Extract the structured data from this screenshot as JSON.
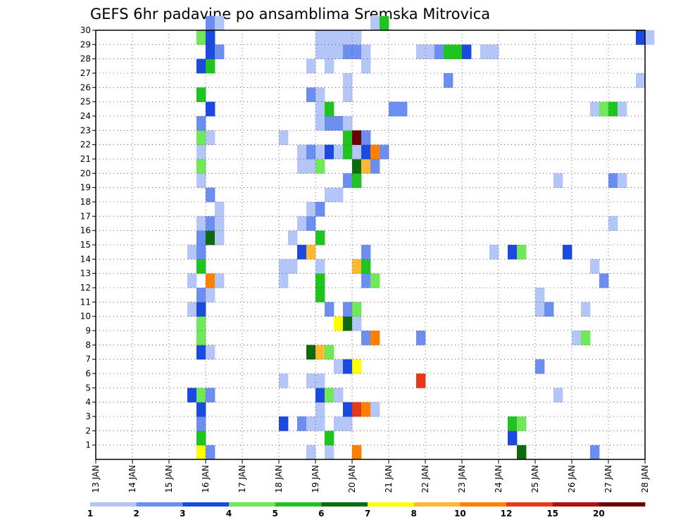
{
  "chart_data": {
    "type": "heatmap",
    "title": "GEFS 6hr padavine po ansamblima Sremska Mitrovica",
    "x_axis": {
      "type": "time",
      "step": "6hr",
      "range": [
        "13 JAN",
        "28 JAN"
      ],
      "tick_labels": [
        "13 JAN",
        "14 JAN",
        "15 JAN",
        "16 JAN",
        "17 JAN",
        "18 JAN",
        "19 JAN",
        "20 JAN",
        "21 JAN",
        "22 JAN",
        "23 JAN",
        "24 JAN",
        "25 JAN",
        "26 JAN",
        "27 JAN",
        "28 JAN"
      ]
    },
    "y_axis": {
      "type": "ensemble member",
      "range": [
        0,
        30
      ],
      "tick_labels": [
        "1",
        "2",
        "3",
        "4",
        "5",
        "6",
        "7",
        "8",
        "9",
        "10",
        "11",
        "12",
        "13",
        "14",
        "15",
        "16",
        "17",
        "18",
        "19",
        "20",
        "21",
        "22",
        "23",
        "24",
        "25",
        "26",
        "27",
        "28",
        "29",
        "30"
      ]
    },
    "grid": "dotted",
    "legend": {
      "position": "bottom",
      "levels": [
        "1",
        "2",
        "3",
        "4",
        "5",
        "6",
        "7",
        "8",
        "10",
        "12",
        "15",
        "20"
      ],
      "colors": [
        "#b3c6f7",
        "#6b8ef0",
        "#1a4ae0",
        "#6fe85a",
        "#1fc41f",
        "#0d6b0d",
        "#ffff00",
        "#ffb833",
        "#ff7f00",
        "#e83818",
        "#b01010",
        "#6b0000"
      ]
    },
    "cells": [
      {
        "t": "15 JAN 18z",
        "member": 0,
        "level": 7
      },
      {
        "t": "16 JAN 00z",
        "member": 0,
        "level": 2
      },
      {
        "t": "18 JAN 18z",
        "member": 0,
        "level": 1
      },
      {
        "t": "19 JAN 06z",
        "member": 0,
        "level": 1
      },
      {
        "t": "20 JAN 00z",
        "member": 0,
        "level": 9
      },
      {
        "t": "24 JAN 12z",
        "member": 0,
        "level": 6
      },
      {
        "t": "26 JAN 12z",
        "member": 0,
        "level": 2
      },
      {
        "t": "15 JAN 18z",
        "member": 1,
        "level": 5
      },
      {
        "t": "19 JAN 06z",
        "member": 1,
        "level": 5
      },
      {
        "t": "24 JAN 06z",
        "member": 1,
        "level": 3
      },
      {
        "t": "15 JAN 18z",
        "member": 2,
        "level": 2
      },
      {
        "t": "18 JAN 00z",
        "member": 2,
        "level": 3
      },
      {
        "t": "18 JAN 12z",
        "member": 2,
        "level": 2
      },
      {
        "t": "18 JAN 18z",
        "member": 2,
        "level": 1
      },
      {
        "t": "19 JAN 00z",
        "member": 2,
        "level": 1
      },
      {
        "t": "19 JAN 12z",
        "member": 2,
        "level": 1
      },
      {
        "t": "19 JAN 18z",
        "member": 2,
        "level": 1
      },
      {
        "t": "24 JAN 06z",
        "member": 2,
        "level": 5
      },
      {
        "t": "24 JAN 12z",
        "member": 2,
        "level": 4
      },
      {
        "t": "15 JAN 18z",
        "member": 3,
        "level": 3
      },
      {
        "t": "19 JAN 00z",
        "member": 3,
        "level": 1
      },
      {
        "t": "19 JAN 18z",
        "member": 3,
        "level": 3
      },
      {
        "t": "20 JAN 00z",
        "member": 3,
        "level": 10
      },
      {
        "t": "20 JAN 06z",
        "member": 3,
        "level": 9
      },
      {
        "t": "20 JAN 12z",
        "member": 3,
        "level": 1
      },
      {
        "t": "15 JAN 12z",
        "member": 4,
        "level": 3
      },
      {
        "t": "15 JAN 18z",
        "member": 4,
        "level": 4
      },
      {
        "t": "16 JAN 00z",
        "member": 4,
        "level": 2
      },
      {
        "t": "19 JAN 00z",
        "member": 4,
        "level": 3
      },
      {
        "t": "19 JAN 06z",
        "member": 4,
        "level": 4
      },
      {
        "t": "19 JAN 12z",
        "member": 4,
        "level": 1
      },
      {
        "t": "25 JAN 12z",
        "member": 4,
        "level": 1
      },
      {
        "t": "18 JAN 00z",
        "member": 5,
        "level": 1
      },
      {
        "t": "18 JAN 18z",
        "member": 5,
        "level": 1
      },
      {
        "t": "19 JAN 00z",
        "member": 5,
        "level": 1
      },
      {
        "t": "21 JAN 18z",
        "member": 5,
        "level": 10
      },
      {
        "t": "19 JAN 12z",
        "member": 6,
        "level": 1
      },
      {
        "t": "19 JAN 18z",
        "member": 6,
        "level": 3
      },
      {
        "t": "20 JAN 00z",
        "member": 6,
        "level": 7
      },
      {
        "t": "25 JAN 00z",
        "member": 6,
        "level": 2
      },
      {
        "t": "15 JAN 18z",
        "member": 7,
        "level": 3
      },
      {
        "t": "16 JAN 00z",
        "member": 7,
        "level": 1
      },
      {
        "t": "18 JAN 18z",
        "member": 7,
        "level": 6
      },
      {
        "t": "19 JAN 00z",
        "member": 7,
        "level": 8
      },
      {
        "t": "19 JAN 06z",
        "member": 7,
        "level": 4
      },
      {
        "t": "15 JAN 18z",
        "member": 8,
        "level": 4
      },
      {
        "t": "20 JAN 06z",
        "member": 8,
        "level": 2
      },
      {
        "t": "20 JAN 12z",
        "member": 8,
        "level": 9
      },
      {
        "t": "21 JAN 18z",
        "member": 8,
        "level": 2
      },
      {
        "t": "26 JAN 00z",
        "member": 8,
        "level": 1
      },
      {
        "t": "26 JAN 06z",
        "member": 8,
        "level": 4
      },
      {
        "t": "15 JAN 18z",
        "member": 9,
        "level": 4
      },
      {
        "t": "19 JAN 12z",
        "member": 9,
        "level": 7
      },
      {
        "t": "19 JAN 18z",
        "member": 9,
        "level": 6
      },
      {
        "t": "20 JAN 00z",
        "member": 9,
        "level": 1
      },
      {
        "t": "15 JAN 12z",
        "member": 10,
        "level": 1
      },
      {
        "t": "15 JAN 18z",
        "member": 10,
        "level": 3
      },
      {
        "t": "19 JAN 06z",
        "member": 10,
        "level": 2
      },
      {
        "t": "19 JAN 18z",
        "member": 10,
        "level": 2
      },
      {
        "t": "20 JAN 00z",
        "member": 10,
        "level": 4
      },
      {
        "t": "25 JAN 00z",
        "member": 10,
        "level": 1
      },
      {
        "t": "25 JAN 06z",
        "member": 10,
        "level": 2
      },
      {
        "t": "26 JAN 06z",
        "member": 10,
        "level": 1
      },
      {
        "t": "15 JAN 18z",
        "member": 11,
        "level": 2
      },
      {
        "t": "16 JAN 00z",
        "member": 11,
        "level": 1
      },
      {
        "t": "19 JAN 00z",
        "member": 11,
        "level": 5
      },
      {
        "t": "25 JAN 00z",
        "member": 11,
        "level": 1
      },
      {
        "t": "15 JAN 12z",
        "member": 12,
        "level": 1
      },
      {
        "t": "16 JAN 00z",
        "member": 12,
        "level": 9
      },
      {
        "t": "16 JAN 06z",
        "member": 12,
        "level": 1
      },
      {
        "t": "18 JAN 00z",
        "member": 12,
        "level": 1
      },
      {
        "t": "19 JAN 00z",
        "member": 12,
        "level": 5
      },
      {
        "t": "20 JAN 06z",
        "member": 12,
        "level": 2
      },
      {
        "t": "20 JAN 12z",
        "member": 12,
        "level": 4
      },
      {
        "t": "26 JAN 18z",
        "member": 12,
        "level": 2
      },
      {
        "t": "15 JAN 18z",
        "member": 13,
        "level": 5
      },
      {
        "t": "18 JAN 00z",
        "member": 13,
        "level": 1
      },
      {
        "t": "18 JAN 06z",
        "member": 13,
        "level": 1
      },
      {
        "t": "19 JAN 00z",
        "member": 13,
        "level": 1
      },
      {
        "t": "20 JAN 00z",
        "member": 13,
        "level": 8
      },
      {
        "t": "20 JAN 06z",
        "member": 13,
        "level": 5
      },
      {
        "t": "26 JAN 12z",
        "member": 13,
        "level": 1
      },
      {
        "t": "15 JAN 12z",
        "member": 14,
        "level": 1
      },
      {
        "t": "15 JAN 18z",
        "member": 14,
        "level": 2
      },
      {
        "t": "18 JAN 12z",
        "member": 14,
        "level": 3
      },
      {
        "t": "18 JAN 18z",
        "member": 14,
        "level": 8
      },
      {
        "t": "20 JAN 06z",
        "member": 14,
        "level": 2
      },
      {
        "t": "23 JAN 18z",
        "member": 14,
        "level": 1
      },
      {
        "t": "24 JAN 06z",
        "member": 14,
        "level": 3
      },
      {
        "t": "24 JAN 12z",
        "member": 14,
        "level": 4
      },
      {
        "t": "25 JAN 18z",
        "member": 14,
        "level": 3
      },
      {
        "t": "15 JAN 18z",
        "member": 15,
        "level": 2
      },
      {
        "t": "16 JAN 00z",
        "member": 15,
        "level": 6
      },
      {
        "t": "16 JAN 06z",
        "member": 15,
        "level": 1
      },
      {
        "t": "18 JAN 06z",
        "member": 15,
        "level": 1
      },
      {
        "t": "19 JAN 00z",
        "member": 15,
        "level": 5
      },
      {
        "t": "15 JAN 18z",
        "member": 16,
        "level": 1
      },
      {
        "t": "16 JAN 00z",
        "member": 16,
        "level": 2
      },
      {
        "t": "16 JAN 06z",
        "member": 16,
        "level": 1
      },
      {
        "t": "18 JAN 12z",
        "member": 16,
        "level": 1
      },
      {
        "t": "18 JAN 18z",
        "member": 16,
        "level": 2
      },
      {
        "t": "27 JAN 00z",
        "member": 16,
        "level": 1
      },
      {
        "t": "16 JAN 06z",
        "member": 17,
        "level": 1
      },
      {
        "t": "18 JAN 18z",
        "member": 17,
        "level": 1
      },
      {
        "t": "19 JAN 00z",
        "member": 17,
        "level": 2
      },
      {
        "t": "16 JAN 00z",
        "member": 18,
        "level": 2
      },
      {
        "t": "19 JAN 06z",
        "member": 18,
        "level": 1
      },
      {
        "t": "19 JAN 12z",
        "member": 18,
        "level": 1
      },
      {
        "t": "15 JAN 18z",
        "member": 19,
        "level": 1
      },
      {
        "t": "19 JAN 18z",
        "member": 19,
        "level": 2
      },
      {
        "t": "20 JAN 00z",
        "member": 19,
        "level": 5
      },
      {
        "t": "25 JAN 12z",
        "member": 19,
        "level": 1
      },
      {
        "t": "27 JAN 00z",
        "member": 19,
        "level": 2
      },
      {
        "t": "27 JAN 06z",
        "member": 19,
        "level": 1
      },
      {
        "t": "15 JAN 18z",
        "member": 20,
        "level": 4
      },
      {
        "t": "18 JAN 12z",
        "member": 20,
        "level": 1
      },
      {
        "t": "18 JAN 18z",
        "member": 20,
        "level": 1
      },
      {
        "t": "19 JAN 00z",
        "member": 20,
        "level": 4
      },
      {
        "t": "20 JAN 00z",
        "member": 20,
        "level": 6
      },
      {
        "t": "20 JAN 06z",
        "member": 20,
        "level": 8
      },
      {
        "t": "20 JAN 12z",
        "member": 20,
        "level": 2
      },
      {
        "t": "15 JAN 18z",
        "member": 21,
        "level": 1
      },
      {
        "t": "18 JAN 12z",
        "member": 21,
        "level": 1
      },
      {
        "t": "18 JAN 18z",
        "member": 21,
        "level": 2
      },
      {
        "t": "19 JAN 00z",
        "member": 21,
        "level": 1
      },
      {
        "t": "19 JAN 06z",
        "member": 21,
        "level": 3
      },
      {
        "t": "19 JAN 12z",
        "member": 21,
        "level": 1
      },
      {
        "t": "19 JAN 18z",
        "member": 21,
        "level": 5
      },
      {
        "t": "20 JAN 00z",
        "member": 21,
        "level": 1
      },
      {
        "t": "20 JAN 06z",
        "member": 21,
        "level": 3
      },
      {
        "t": "20 JAN 12z",
        "member": 21,
        "level": 9
      },
      {
        "t": "20 JAN 18z",
        "member": 21,
        "level": 2
      },
      {
        "t": "15 JAN 18z",
        "member": 22,
        "level": 4
      },
      {
        "t": "16 JAN 00z",
        "member": 22,
        "level": 1
      },
      {
        "t": "18 JAN 00z",
        "member": 22,
        "level": 1
      },
      {
        "t": "19 JAN 18z",
        "member": 22,
        "level": 5
      },
      {
        "t": "20 JAN 00z",
        "member": 22,
        "level": 12
      },
      {
        "t": "20 JAN 06z",
        "member": 22,
        "level": 2
      },
      {
        "t": "15 JAN 18z",
        "member": 23,
        "level": 2
      },
      {
        "t": "19 JAN 00z",
        "member": 23,
        "level": 1
      },
      {
        "t": "19 JAN 06z",
        "member": 23,
        "level": 2
      },
      {
        "t": "19 JAN 12z",
        "member": 23,
        "level": 2
      },
      {
        "t": "19 JAN 18z",
        "member": 23,
        "level": 1
      },
      {
        "t": "16 JAN 00z",
        "member": 24,
        "level": 3
      },
      {
        "t": "19 JAN 00z",
        "member": 24,
        "level": 1
      },
      {
        "t": "19 JAN 06z",
        "member": 24,
        "level": 5
      },
      {
        "t": "21 JAN 00z",
        "member": 24,
        "level": 2
      },
      {
        "t": "21 JAN 06z",
        "member": 24,
        "level": 2
      },
      {
        "t": "26 JAN 12z",
        "member": 24,
        "level": 1
      },
      {
        "t": "26 JAN 18z",
        "member": 24,
        "level": 4
      },
      {
        "t": "27 JAN 00z",
        "member": 24,
        "level": 5
      },
      {
        "t": "27 JAN 06z",
        "member": 24,
        "level": 1
      },
      {
        "t": "15 JAN 18z",
        "member": 25,
        "level": 5
      },
      {
        "t": "18 JAN 18z",
        "member": 25,
        "level": 2
      },
      {
        "t": "19 JAN 00z",
        "member": 25,
        "level": 1
      },
      {
        "t": "19 JAN 18z",
        "member": 25,
        "level": 1
      },
      {
        "t": "19 JAN 18z",
        "member": 26,
        "level": 1
      },
      {
        "t": "22 JAN 12z",
        "member": 26,
        "level": 2
      },
      {
        "t": "27 JAN 18z",
        "member": 26,
        "level": 1
      },
      {
        "t": "15 JAN 18z",
        "member": 27,
        "level": 3
      },
      {
        "t": "16 JAN 00z",
        "member": 27,
        "level": 5
      },
      {
        "t": "18 JAN 18z",
        "member": 27,
        "level": 1
      },
      {
        "t": "19 JAN 06z",
        "member": 27,
        "level": 1
      },
      {
        "t": "20 JAN 06z",
        "member": 27,
        "level": 1
      },
      {
        "t": "16 JAN 00z",
        "member": 28,
        "level": 3
      },
      {
        "t": "16 JAN 06z",
        "member": 28,
        "level": 2
      },
      {
        "t": "19 JAN 00z",
        "member": 28,
        "level": 1
      },
      {
        "t": "19 JAN 06z",
        "member": 28,
        "level": 1
      },
      {
        "t": "19 JAN 12z",
        "member": 28,
        "level": 1
      },
      {
        "t": "19 JAN 18z",
        "member": 28,
        "level": 2
      },
      {
        "t": "20 JAN 00z",
        "member": 28,
        "level": 2
      },
      {
        "t": "20 JAN 06z",
        "member": 28,
        "level": 1
      },
      {
        "t": "21 JAN 18z",
        "member": 28,
        "level": 1
      },
      {
        "t": "22 JAN 00z",
        "member": 28,
        "level": 1
      },
      {
        "t": "22 JAN 06z",
        "member": 28,
        "level": 2
      },
      {
        "t": "22 JAN 12z",
        "member": 28,
        "level": 5
      },
      {
        "t": "22 JAN 18z",
        "member": 28,
        "level": 5
      },
      {
        "t": "23 JAN 00z",
        "member": 28,
        "level": 3
      },
      {
        "t": "23 JAN 12z",
        "member": 28,
        "level": 1
      },
      {
        "t": "23 JAN 18z",
        "member": 28,
        "level": 1
      },
      {
        "t": "15 JAN 18z",
        "member": 29,
        "level": 4
      },
      {
        "t": "16 JAN 00z",
        "member": 29,
        "level": 3
      },
      {
        "t": "19 JAN 00z",
        "member": 29,
        "level": 1
      },
      {
        "t": "19 JAN 06z",
        "member": 29,
        "level": 1
      },
      {
        "t": "19 JAN 12z",
        "member": 29,
        "level": 1
      },
      {
        "t": "19 JAN 18z",
        "member": 29,
        "level": 1
      },
      {
        "t": "20 JAN 00z",
        "member": 29,
        "level": 1
      },
      {
        "t": "27 JAN 18z",
        "member": 29,
        "level": 3
      },
      {
        "t": "28 JAN 00z",
        "member": 29,
        "level": 1
      },
      {
        "t": "16 JAN 00z",
        "member": 30,
        "level": 2
      },
      {
        "t": "16 JAN 06z",
        "member": 30,
        "level": 1
      },
      {
        "t": "20 JAN 12z",
        "member": 30,
        "level": 1
      },
      {
        "t": "20 JAN 18z",
        "member": 30,
        "level": 5
      }
    ]
  }
}
